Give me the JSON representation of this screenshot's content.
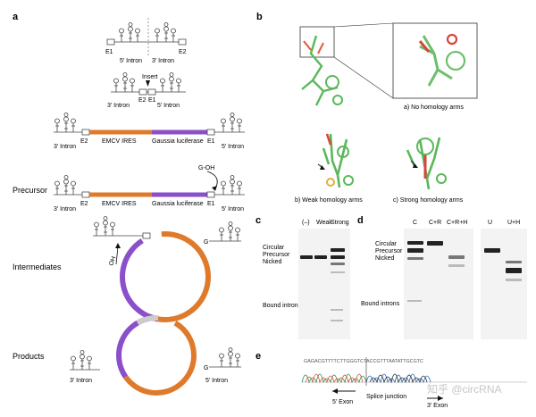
{
  "panels": {
    "a": {
      "letter": "a",
      "top_construct": {
        "e1": "E1",
        "e2": "E2",
        "intron5": "5′ Intron",
        "intron3": "3′ Intron"
      },
      "insert_construct": {
        "insert": "Insert",
        "e2": "E2",
        "e1": "E1",
        "intron3": "3′ Intron",
        "intron5": "5′ Intron"
      },
      "full_construct": {
        "e2": "E2",
        "emcv": "EMCV IRES",
        "gluc": "Gaussia luciferase",
        "e1": "E1",
        "intron3": "3′ Intron",
        "intron5": "5′ Intron"
      },
      "precursor": {
        "label": "Precursor",
        "goh": "G-OH",
        "e2": "E2",
        "emcv": "EMCV IRES",
        "gluc": "Gaussia luciferase",
        "e1": "E1",
        "intron3": "3′ Intron",
        "intron5": "5′ Intron"
      },
      "intermediates": {
        "label": "Intermediates",
        "oh": "OH",
        "g": "G"
      },
      "products": {
        "label": "Products",
        "intron3": "3′ Intron",
        "intron5": "5′ Intron",
        "g": "G"
      }
    },
    "b": {
      "letter": "b",
      "no_arms": "a) No homology arms",
      "weak_arms": "b) Weak homology arms",
      "strong_arms": "c) Strong homology arms"
    },
    "c": {
      "letter": "c",
      "lanes": [
        "(–)",
        "Weak",
        "Strong"
      ],
      "circular": "Circular",
      "precursor": "Precursor",
      "nicked": "Nicked",
      "bound": "Bound introns"
    },
    "d": {
      "letter": "d",
      "lanes": [
        "C",
        "C+R",
        "C+R+H",
        "U",
        "U+H"
      ],
      "circular": "Circular",
      "precursor": "Precursor",
      "nicked": "Nicked",
      "bound": "Bound introns"
    },
    "e": {
      "letter": "e",
      "sequence": "GAGACGTTTTCTTGGGTCTACCGTTTAATATTGCGTC",
      "exon5": "5′ Exon",
      "junction": "Splice junction",
      "exon3": "3′ Exon",
      "watermark": "知乎 @circRNA"
    }
  },
  "colors": {
    "orange": "#e07a2b",
    "purple": "#8a4fc9",
    "gel": "#f3f3f3",
    "band": "#222222"
  }
}
